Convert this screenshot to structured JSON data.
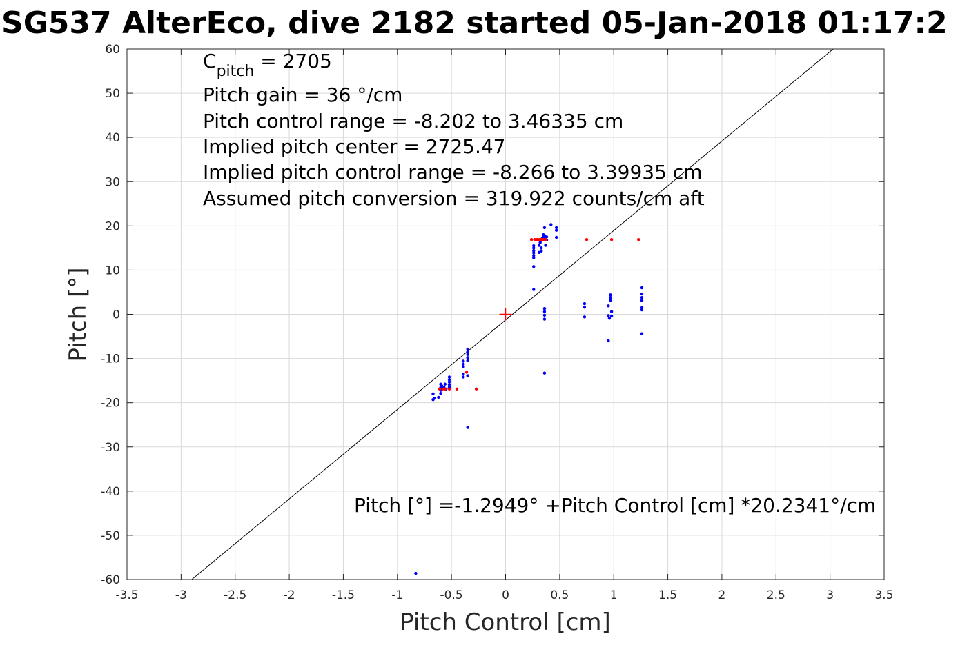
{
  "chart_data": {
    "type": "scatter",
    "title": "SG537 AlterEco, dive 2182 started 05-Jan-2018 01:17:2",
    "xlabel": "Pitch Control [cm]",
    "ylabel": "Pitch [°]",
    "xlim": [
      -3.5,
      3.5
    ],
    "ylim": [
      -60,
      60
    ],
    "grid": true,
    "x_ticks": [
      -3.5,
      -3,
      -2.5,
      -2,
      -1.5,
      -1,
      -0.5,
      0,
      0.5,
      1,
      1.5,
      2,
      2.5,
      3,
      3.5
    ],
    "x_tick_labels": [
      "-3.5",
      "-3",
      "-2.5",
      "-2",
      "-1.5",
      "-1",
      "-0.5",
      "0",
      "0.5",
      "1",
      "1.5",
      "2",
      "2.5",
      "3",
      "3.5"
    ],
    "y_ticks": [
      -60,
      -50,
      -40,
      -30,
      -20,
      -10,
      0,
      10,
      20,
      30,
      40,
      50,
      60
    ],
    "y_tick_labels": [
      "-60",
      "-50",
      "-40",
      "-30",
      "-20",
      "-10",
      "0",
      "10",
      "20",
      "30",
      "40",
      "50",
      "60"
    ],
    "annotations": {
      "cpitch_letter": "C",
      "cpitch_sub": "pitch",
      "cpitch_value": " = 2705",
      "lines": [
        "Pitch gain = 36 °/cm",
        "Pitch control range = -8.202 to 3.46335 cm",
        "Implied pitch center = 2725.47",
        "Implied pitch control range = -8.266 to 3.39935 cm",
        "Assumed pitch conversion = 319.922 counts/cm aft"
      ],
      "fit_equation": "Pitch [°] =-1.2949° +Pitch Control [cm] *20.2341°/cm"
    },
    "fit_line": {
      "intercept": -1.2949,
      "slope": 20.2341,
      "color": "#000000"
    },
    "center_marker": {
      "x": 0,
      "y": 0,
      "color": "#ff0000",
      "shape": "plus"
    },
    "series": [
      {
        "color": "#0000ff",
        "points": [
          [
            -0.67,
            -18.0
          ],
          [
            -0.67,
            -19.3
          ],
          [
            -0.66,
            -19.0
          ],
          [
            -0.62,
            -18.8
          ],
          [
            -0.6,
            -15.8
          ],
          [
            -0.6,
            -16.6
          ],
          [
            -0.6,
            -17.2
          ],
          [
            -0.6,
            -17.9
          ],
          [
            -0.59,
            -16.2
          ],
          [
            -0.57,
            -16.5
          ],
          [
            -0.56,
            -15.8
          ],
          [
            -0.55,
            -16.9
          ],
          [
            -0.52,
            -14.2
          ],
          [
            -0.52,
            -14.8
          ],
          [
            -0.52,
            -15.3
          ],
          [
            -0.52,
            -15.9
          ],
          [
            -0.52,
            -16.5
          ],
          [
            -0.39,
            -10.6
          ],
          [
            -0.39,
            -11.3
          ],
          [
            -0.39,
            -11.9
          ],
          [
            -0.39,
            -13.5
          ],
          [
            -0.39,
            -14.2
          ],
          [
            -0.35,
            -7.9
          ],
          [
            -0.35,
            -8.5
          ],
          [
            -0.35,
            -9.1
          ],
          [
            -0.35,
            -9.8
          ],
          [
            -0.35,
            -10.5
          ],
          [
            -0.35,
            -13.9
          ],
          [
            -0.35,
            -25.6
          ],
          [
            0.26,
            5.6
          ],
          [
            0.26,
            10.8
          ],
          [
            0.26,
            12.8
          ],
          [
            0.26,
            13.3
          ],
          [
            0.26,
            13.9
          ],
          [
            0.26,
            14.4
          ],
          [
            0.26,
            15.0
          ],
          [
            0.26,
            15.5
          ],
          [
            0.31,
            14.0
          ],
          [
            0.31,
            15.6
          ],
          [
            0.32,
            16.2
          ],
          [
            0.33,
            14.3
          ],
          [
            0.33,
            15.0
          ],
          [
            0.33,
            16.7
          ],
          [
            0.34,
            17.2
          ],
          [
            0.35,
            17.6
          ],
          [
            0.35,
            18.0
          ],
          [
            0.36,
            17.4
          ],
          [
            0.36,
            17.8
          ],
          [
            0.36,
            19.6
          ],
          [
            0.37,
            15.6
          ],
          [
            0.38,
            16.8
          ],
          [
            0.38,
            17.5
          ],
          [
            0.42,
            20.3
          ],
          [
            0.47,
            19.0
          ],
          [
            0.47,
            19.6
          ],
          [
            0.47,
            17.4
          ],
          [
            0.36,
            1.3
          ],
          [
            0.36,
            0.6
          ],
          [
            0.36,
            -0.2
          ],
          [
            0.36,
            -1.1
          ],
          [
            0.36,
            -13.3
          ],
          [
            0.73,
            2.4
          ],
          [
            0.73,
            1.6
          ],
          [
            0.73,
            -0.6
          ],
          [
            0.95,
            1.9
          ],
          [
            0.95,
            -0.3
          ],
          [
            0.95,
            -6.0
          ],
          [
            0.96,
            -0.9
          ],
          [
            0.97,
            4.4
          ],
          [
            0.97,
            3.8
          ],
          [
            0.97,
            3.1
          ],
          [
            0.98,
            0.6
          ],
          [
            0.98,
            -0.4
          ],
          [
            1.26,
            6.0
          ],
          [
            1.26,
            4.6
          ],
          [
            1.26,
            3.8
          ],
          [
            1.26,
            3.1
          ],
          [
            1.26,
            1.5
          ],
          [
            1.26,
            1.0
          ],
          [
            1.26,
            -4.4
          ],
          [
            -0.83,
            -58.6
          ]
        ]
      },
      {
        "color": "#ff0000",
        "points": [
          [
            -0.61,
            -16.9
          ],
          [
            -0.58,
            -16.9
          ],
          [
            -0.56,
            -16.9
          ],
          [
            -0.52,
            -16.9
          ],
          [
            -0.45,
            -16.9
          ],
          [
            -0.27,
            -16.9
          ],
          [
            -0.36,
            -13.1
          ],
          [
            0.24,
            16.9
          ],
          [
            0.27,
            16.9
          ],
          [
            0.29,
            16.9
          ],
          [
            0.31,
            16.9
          ],
          [
            0.33,
            16.9
          ],
          [
            0.35,
            16.9
          ],
          [
            0.37,
            16.9
          ],
          [
            0.75,
            16.9
          ],
          [
            0.98,
            16.9
          ],
          [
            1.23,
            16.9
          ]
        ]
      }
    ]
  }
}
